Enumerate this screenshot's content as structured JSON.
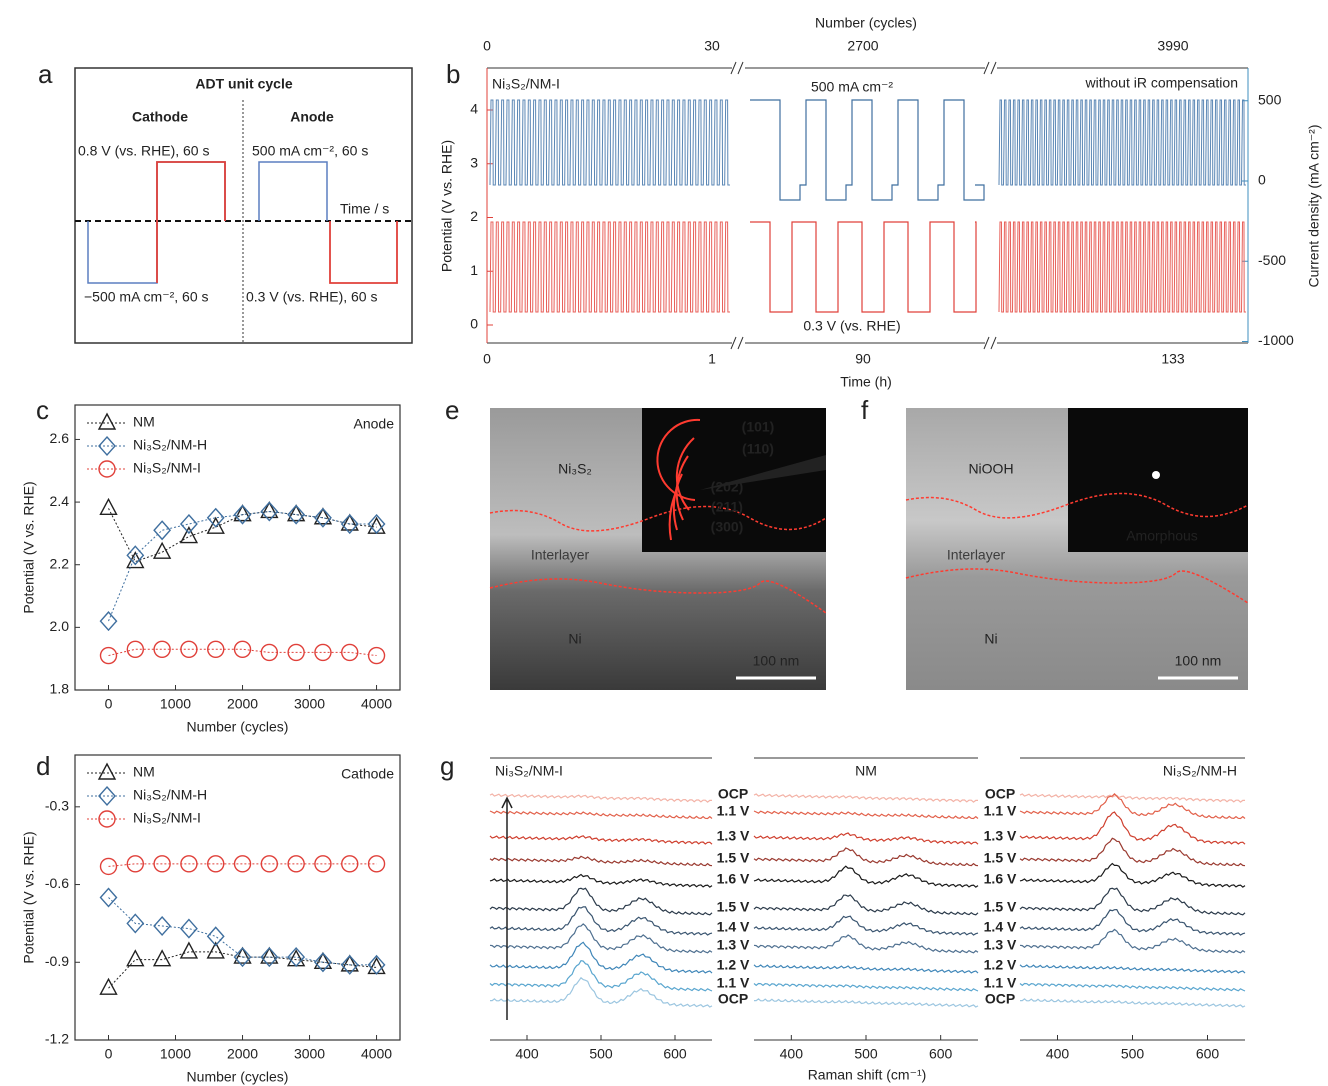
{
  "panel_a": {
    "label": "a",
    "title": "ADT unit cycle",
    "cathode": "Cathode",
    "anode": "Anode",
    "cathode_upper": "0.8 V (vs. RHE), 60 s",
    "cathode_lower": "−500 mA cm⁻², 60 s",
    "anode_upper": "500 mA cm⁻², 60 s",
    "anode_lower": "0.3 V (vs. RHE), 60 s",
    "time_axis": "Time / s"
  },
  "panel_b": {
    "label": "b",
    "sample": "Ni₃S₂/NM-I",
    "current_note": "500 mA cm⁻²",
    "potential_note": "0.3 V (vs. RHE)",
    "compensation_note": "without iR compensation",
    "top_axis_label": "Number (cycles)",
    "top_ticks": [
      0,
      30,
      2700,
      3990
    ],
    "bottom_axis_label": "Time (h)",
    "bottom_ticks": [
      0,
      1,
      90,
      133
    ],
    "left_axis_label": "Potential (V vs. RHE)",
    "left_ticks": [
      0,
      1,
      2,
      3,
      4
    ],
    "right_axis_label": "Current density (mA cm⁻²)",
    "right_ticks": [
      500,
      0,
      -500,
      -1000
    ]
  },
  "chart_data": [
    {
      "type": "line",
      "label": "c",
      "annotation": "Anode",
      "xlabel": "Number (cycles)",
      "ylabel": "Potential (V vs. RHE)",
      "legend": "upper left",
      "x": [
        0,
        400,
        800,
        1200,
        1600,
        2000,
        2400,
        2800,
        3200,
        3600,
        4000
      ],
      "series": [
        {
          "name": "NM",
          "color": "#222222",
          "marker": "triangle",
          "values": [
            2.38,
            2.21,
            2.24,
            2.29,
            2.32,
            2.36,
            2.37,
            2.36,
            2.35,
            2.33,
            2.32
          ]
        },
        {
          "name": "Ni₃S₂/NM-H",
          "color": "#3f6f9f",
          "marker": "diamond",
          "values": [
            2.02,
            2.23,
            2.31,
            2.33,
            2.35,
            2.36,
            2.37,
            2.36,
            2.35,
            2.33,
            2.33
          ]
        },
        {
          "name": "Ni₃S₂/NM-I",
          "color": "#e0403a",
          "marker": "circle",
          "values": [
            1.91,
            1.93,
            1.93,
            1.93,
            1.93,
            1.93,
            1.92,
            1.92,
            1.92,
            1.92,
            1.91
          ]
        }
      ],
      "xlim": [
        -500,
        4350
      ],
      "xticks": [
        0,
        1000,
        2000,
        3000,
        4000
      ],
      "ylim": [
        1.8,
        2.71
      ],
      "yticks": [
        1.8,
        {
          "value": 2,
          "label": "2.0"
        },
        2.2,
        2.4,
        2.6
      ]
    },
    {
      "type": "line",
      "label": "d",
      "annotation": "Cathode",
      "xlabel": "Number (cycles)",
      "ylabel": "Potential (V vs. RHE)",
      "legend": "upper left",
      "x": [
        0,
        400,
        800,
        1200,
        1600,
        2000,
        2400,
        2800,
        3200,
        3600,
        4000
      ],
      "series": [
        {
          "name": "NM",
          "color": "#222222",
          "marker": "triangle",
          "values": [
            -1.0,
            -0.89,
            -0.89,
            -0.86,
            -0.86,
            -0.88,
            -0.88,
            -0.89,
            -0.9,
            -0.91,
            -0.92
          ]
        },
        {
          "name": "Ni₃S₂/NM-H",
          "color": "#3f6f9f",
          "marker": "diamond",
          "values": [
            -0.65,
            -0.75,
            -0.76,
            -0.77,
            -0.8,
            -0.88,
            -0.88,
            -0.88,
            -0.9,
            -0.91,
            -0.91
          ]
        },
        {
          "name": "Ni₃S₂/NM-I",
          "color": "#e0403a",
          "marker": "circle",
          "values": [
            -0.53,
            -0.52,
            -0.52,
            -0.52,
            -0.52,
            -0.52,
            -0.52,
            -0.52,
            -0.52,
            -0.52,
            -0.52
          ]
        }
      ],
      "xlim": [
        -500,
        4350
      ],
      "xticks": [
        0,
        1000,
        2000,
        3000,
        4000
      ],
      "ylim": [
        -1.2,
        -0.1
      ],
      "yticks": [
        -1.2,
        -0.9,
        -0.6,
        -0.3
      ]
    }
  ],
  "panel_e": {
    "label": "e",
    "top_layer": "Ni₃S₂",
    "interlayer": "Interlayer",
    "bottom_layer": "Ni",
    "scale_bar": "100 nm",
    "rings": [
      "(101)",
      "(110)",
      "(202)",
      "(211)",
      "(300)"
    ]
  },
  "panel_f": {
    "label": "f",
    "top_layer": "NiOOH",
    "interlayer": "Interlayer",
    "bottom_layer": "Ni",
    "scale_bar": "100 nm",
    "inset_note": "Amorphous"
  },
  "panel_g": {
    "label": "g",
    "columns": [
      "Ni₃S₂/NM-I",
      "NM",
      "Ni₃S₂/NM-H"
    ],
    "potentials": [
      "OCP",
      "1.1 V",
      "1.3 V",
      "1.5 V",
      "1.6 V",
      "1.5 V",
      "1.4 V",
      "1.3 V",
      "1.2 V",
      "1.1 V",
      "OCP"
    ],
    "xticks": [
      400,
      500,
      600
    ],
    "xlabel": "Raman shift (cm⁻¹)"
  }
}
